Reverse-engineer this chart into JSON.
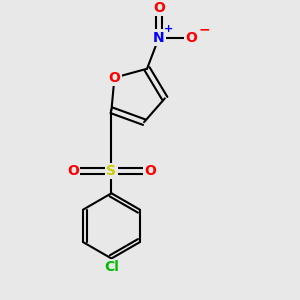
{
  "background_color": "#e8e8e8",
  "bond_color": "#000000",
  "bond_width": 1.5,
  "atom_colors": {
    "O": "#ff0000",
    "N": "#0000ff",
    "S": "#cccc00",
    "Cl": "#00bb00",
    "C": "#000000"
  },
  "font_size": 10,
  "figsize": [
    3.0,
    3.0
  ],
  "dpi": 100
}
